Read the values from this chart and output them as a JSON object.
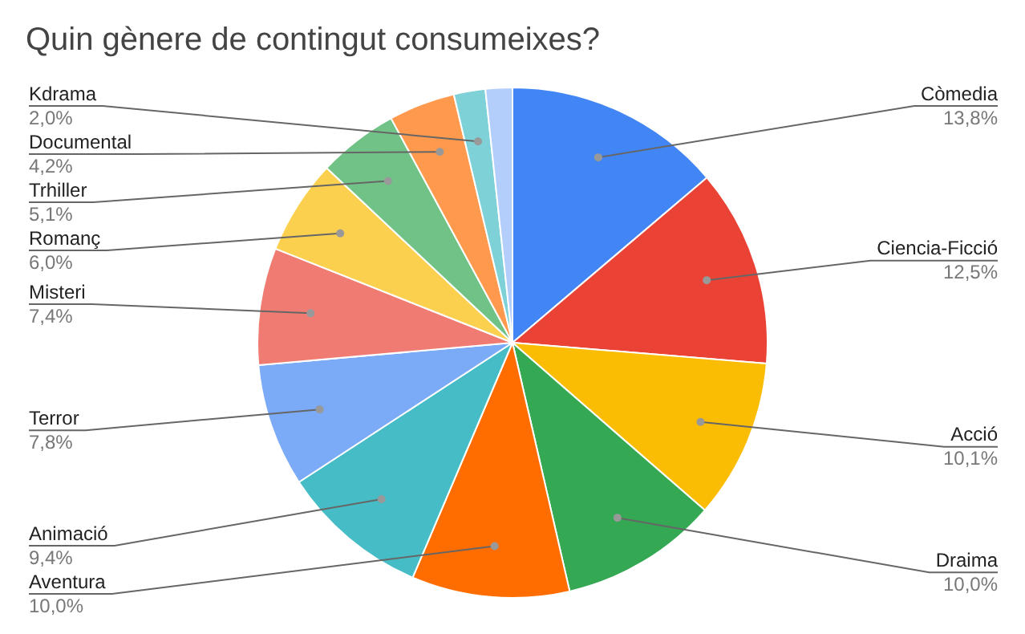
{
  "chart_data": {
    "type": "pie",
    "title": "Quin gènere de contingut consumeixes?",
    "categories": [
      "Còmedia",
      "Ciencia-Ficció",
      "Acció",
      "Draima",
      "Aventura",
      "Animació",
      "Terror",
      "Misteri",
      "Romanç",
      "Trhiller",
      "Documental",
      "Kdrama",
      null
    ],
    "values": [
      13.8,
      12.5,
      10.1,
      10.0,
      10.0,
      9.4,
      7.8,
      7.4,
      6.0,
      5.1,
      4.2,
      2.0,
      1.7
    ],
    "value_labels": [
      "13,8%",
      "12,5%",
      "10,1%",
      "10,0%",
      "10,0%",
      "9,4%",
      "7,8%",
      "7,4%",
      "6,0%",
      "5,1%",
      "4,2%",
      "2,0%",
      null
    ],
    "colors": [
      "#4285f4",
      "#ea4335",
      "#fbbc04",
      "#34a853",
      "#ff6d01",
      "#46bdc6",
      "#7baaf7",
      "#f07b72",
      "#fcd04f",
      "#71c287",
      "#ff994d",
      "#7ed1d7",
      "#b3cefb"
    ],
    "legend": false
  }
}
